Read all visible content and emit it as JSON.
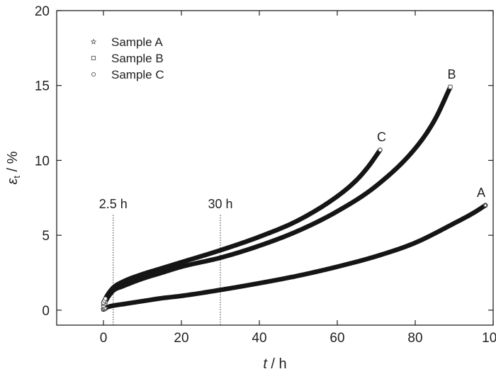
{
  "chart_data": {
    "type": "line",
    "xlabel": "t / h",
    "ylabel": "ε_t / %",
    "xlim": [
      -12,
      100
    ],
    "ylim": [
      -1,
      20
    ],
    "xticks": [
      0,
      20,
      40,
      60,
      80,
      100
    ],
    "yticks": [
      0,
      5,
      10,
      15,
      20
    ],
    "grid": false,
    "legend_position": "top-left",
    "series": [
      {
        "name": "Sample A",
        "marker": "star",
        "end_label": "A",
        "x": [
          0,
          1,
          2.5,
          5,
          10,
          15,
          20,
          30,
          40,
          50,
          60,
          70,
          80,
          90,
          95,
          98
        ],
        "y": [
          0.05,
          0.2,
          0.3,
          0.4,
          0.6,
          0.8,
          0.95,
          1.35,
          1.8,
          2.3,
          2.9,
          3.6,
          4.5,
          5.8,
          6.5,
          7.0
        ]
      },
      {
        "name": "Sample B",
        "marker": "square",
        "end_label": "B",
        "x": [
          0,
          1,
          2.5,
          5,
          10,
          15,
          20,
          30,
          40,
          50,
          60,
          70,
          80,
          85,
          89
        ],
        "y": [
          0.3,
          0.8,
          1.3,
          1.6,
          2.1,
          2.5,
          2.9,
          3.5,
          4.3,
          5.3,
          6.6,
          8.3,
          10.8,
          12.7,
          14.9
        ]
      },
      {
        "name": "Sample C",
        "marker": "circle",
        "end_label": "C",
        "x": [
          0,
          1,
          2.5,
          5,
          10,
          15,
          20,
          30,
          40,
          50,
          60,
          65,
          68,
          71
        ],
        "y": [
          0.5,
          1.0,
          1.5,
          1.9,
          2.4,
          2.8,
          3.2,
          4.0,
          4.9,
          6.0,
          7.6,
          8.7,
          9.6,
          10.7
        ]
      }
    ],
    "reference_lines": [
      {
        "x": 2.5,
        "label": "2.5 h"
      },
      {
        "x": 30,
        "label": "30 h"
      }
    ]
  }
}
